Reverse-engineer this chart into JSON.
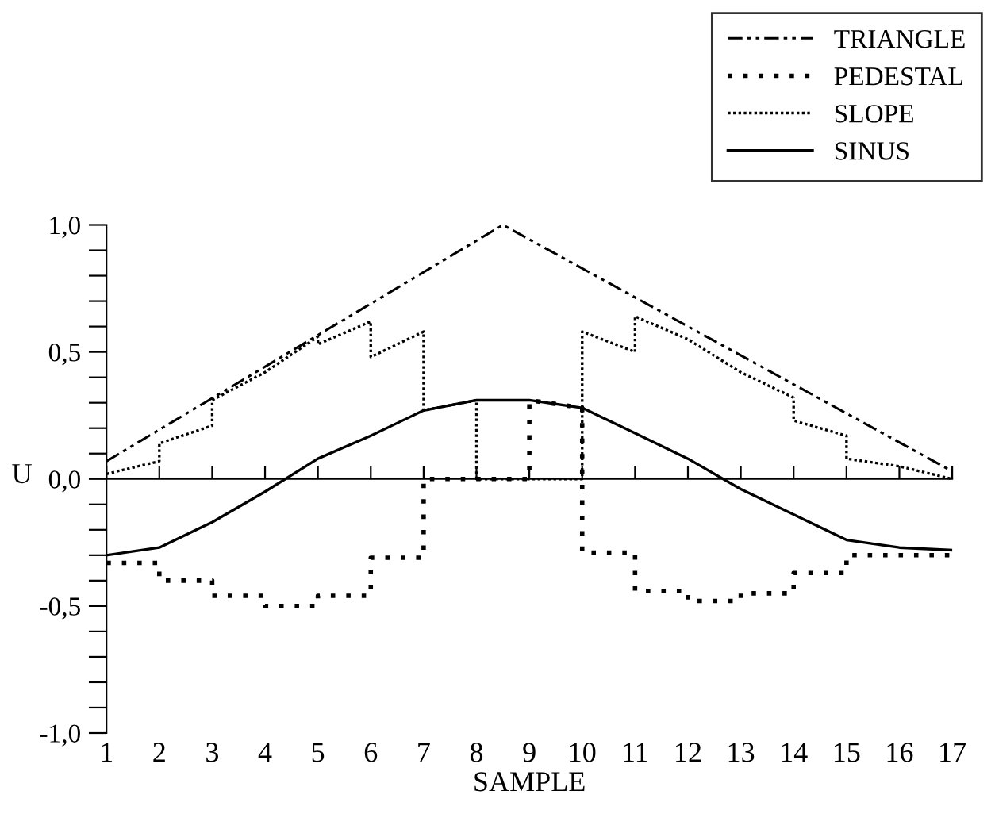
{
  "chart_data": {
    "type": "line",
    "xlabel": "SAMPLE",
    "ylabel": "U",
    "xlim": [
      1,
      17
    ],
    "xticks": [
      1,
      2,
      3,
      4,
      5,
      6,
      7,
      8,
      9,
      10,
      11,
      12,
      13,
      14,
      15,
      16,
      17
    ],
    "ylim": [
      -1.0,
      1.0
    ],
    "yticks": [
      {
        "value": -1.0,
        "label": "-1,0"
      },
      {
        "value": -0.9,
        "label": null
      },
      {
        "value": -0.8,
        "label": null
      },
      {
        "value": -0.7,
        "label": null
      },
      {
        "value": -0.6,
        "label": null
      },
      {
        "value": -0.5,
        "label": "-0,5"
      },
      {
        "value": -0.4,
        "label": null
      },
      {
        "value": -0.3,
        "label": null
      },
      {
        "value": -0.2,
        "label": null
      },
      {
        "value": -0.1,
        "label": null
      },
      {
        "value": 0.0,
        "label": "0,0"
      },
      {
        "value": 0.1,
        "label": null
      },
      {
        "value": 0.2,
        "label": null
      },
      {
        "value": 0.3,
        "label": null
      },
      {
        "value": 0.4,
        "label": null
      },
      {
        "value": 0.5,
        "label": "0,5"
      },
      {
        "value": 0.6,
        "label": null
      },
      {
        "value": 0.7,
        "label": null
      },
      {
        "value": 0.8,
        "label": null
      },
      {
        "value": 0.9,
        "label": null
      },
      {
        "value": 1.0,
        "label": "1,0"
      }
    ],
    "legend": "top right",
    "marker": "none",
    "series": [
      {
        "name": "TRIANGLE",
        "color": "#000000",
        "line_style": "dashdot",
        "x": [
          1,
          8.5,
          17
        ],
        "values": [
          0.07,
          1.0,
          0.03
        ]
      },
      {
        "name": "PEDESTAL",
        "color": "#000000",
        "line_style": "dotted",
        "x": [
          1,
          2,
          2,
          3,
          3,
          4,
          4,
          5,
          5,
          6,
          6,
          7,
          7,
          9,
          9,
          10,
          10,
          11,
          11,
          12,
          12,
          13,
          13,
          14,
          14,
          15,
          15,
          17
        ],
        "values": [
          -0.33,
          -0.33,
          -0.4,
          -0.4,
          -0.46,
          -0.46,
          -0.5,
          -0.5,
          -0.46,
          -0.46,
          -0.31,
          -0.31,
          0.0,
          0.0,
          0.31,
          0.28,
          -0.29,
          -0.29,
          -0.44,
          -0.44,
          -0.48,
          -0.48,
          -0.45,
          -0.45,
          -0.37,
          -0.37,
          -0.3,
          -0.3
        ]
      },
      {
        "name": "SLOPE",
        "color": "#000000",
        "line_style": "densely dotted",
        "x": [
          1,
          2,
          2,
          3,
          3,
          4,
          5,
          5,
          6,
          6,
          7,
          7,
          8,
          8,
          10,
          10,
          11,
          11,
          12,
          13,
          14,
          14,
          15,
          15,
          16,
          17
        ],
        "values": [
          0.02,
          0.07,
          0.14,
          0.21,
          0.31,
          0.42,
          0.56,
          0.53,
          0.62,
          0.48,
          0.58,
          0.27,
          0.31,
          0.0,
          0.0,
          0.58,
          0.5,
          0.64,
          0.55,
          0.42,
          0.32,
          0.23,
          0.17,
          0.08,
          0.05,
          0.0
        ]
      },
      {
        "name": "SINUS",
        "color": "#000000",
        "line_style": "solid",
        "x": [
          1,
          2,
          3,
          4,
          5,
          6,
          7,
          8,
          9,
          10,
          11,
          12,
          13,
          14,
          15,
          16,
          17
        ],
        "values": [
          -0.3,
          -0.27,
          -0.17,
          -0.05,
          0.08,
          0.17,
          0.27,
          0.31,
          0.31,
          0.28,
          0.18,
          0.08,
          -0.04,
          -0.14,
          -0.24,
          -0.27,
          -0.28
        ]
      }
    ]
  }
}
